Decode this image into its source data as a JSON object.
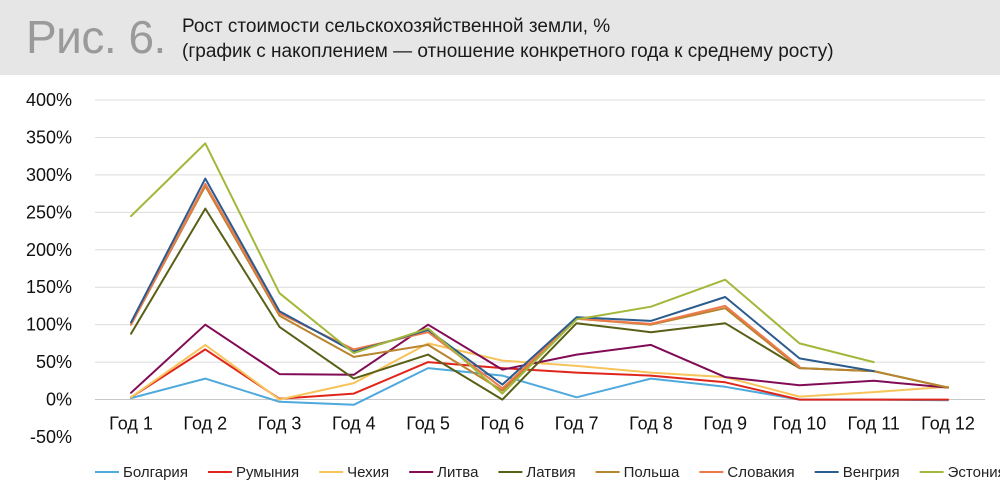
{
  "header": {
    "figure_label": "Рис. 6.",
    "title_line1": "Рост стоимости сельскохозяйственной земли, %",
    "title_line2": "(график с накоплением — отношение конкретного года к среднему росту)"
  },
  "chart_data": {
    "type": "line",
    "categories": [
      "Год 1",
      "Год 2",
      "Год 3",
      "Год 4",
      "Год 5",
      "Год 6",
      "Год 7",
      "Год 8",
      "Год 9",
      "Год 10",
      "Год 11",
      "Год 12"
    ],
    "ylim": [
      -50,
      400
    ],
    "yticks": [
      -50,
      0,
      50,
      100,
      150,
      200,
      250,
      300,
      350,
      400
    ],
    "ytick_labels": [
      "-50%",
      "0%",
      "50%",
      "100%",
      "150%",
      "200%",
      "250%",
      "300%",
      "350%",
      "400%"
    ],
    "grid": true,
    "legend_position": "bottom",
    "series": [
      {
        "name": "Болгария",
        "color": "#4fa9dc",
        "values": [
          2,
          28,
          -3,
          -7,
          42,
          32,
          3,
          28,
          17,
          0,
          0,
          -1
        ]
      },
      {
        "name": "Румыния",
        "color": "#e0261b",
        "values": [
          3,
          67,
          1,
          8,
          50,
          42,
          36,
          32,
          23,
          0,
          0,
          0
        ]
      },
      {
        "name": "Чехия",
        "color": "#f6c45a",
        "values": [
          3,
          73,
          0,
          22,
          75,
          52,
          45,
          36,
          30,
          4,
          10,
          17
        ]
      },
      {
        "name": "Литва",
        "color": "#820b56",
        "values": [
          9,
          100,
          34,
          33,
          100,
          40,
          60,
          73,
          30,
          19,
          25,
          16
        ]
      },
      {
        "name": "Латвия",
        "color": "#5a5f16",
        "values": [
          88,
          255,
          97,
          28,
          60,
          0,
          102,
          90,
          102,
          42,
          38,
          16
        ]
      },
      {
        "name": "Польша",
        "color": "#b8842d",
        "values": [
          100,
          285,
          112,
          57,
          73,
          12,
          108,
          100,
          122,
          42,
          38,
          16
        ]
      },
      {
        "name": "Словакия",
        "color": "#ee7a4c",
        "values": [
          100,
          288,
          115,
          67,
          90,
          15,
          108,
          101,
          125,
          44,
          null,
          null
        ]
      },
      {
        "name": "Венгрия",
        "color": "#2c5b8d",
        "values": [
          103,
          295,
          118,
          64,
          93,
          20,
          110,
          105,
          137,
          55,
          38,
          null
        ]
      },
      {
        "name": "Эстония",
        "color": "#a3b83a",
        "values": [
          245,
          342,
          142,
          62,
          95,
          8,
          107,
          124,
          160,
          75,
          50,
          null
        ]
      }
    ]
  }
}
